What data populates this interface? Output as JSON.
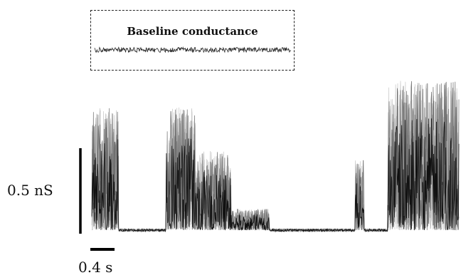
{
  "inset": {
    "title": "Baseline conductance"
  },
  "scale_bars": {
    "vertical_label": "0.5 nS",
    "horizontal_label": "0.4 s"
  },
  "chart_data": {
    "type": "line",
    "title": "",
    "xlabel": "",
    "ylabel": "",
    "units": {
      "x": "s",
      "y": "nS"
    },
    "xlim": [
      0,
      6.2
    ],
    "ylim": [
      0,
      0.85
    ],
    "bursts": [
      {
        "start_s": 0.0,
        "end_s": 0.45,
        "peak_nS": 0.7
      },
      {
        "start_s": 1.25,
        "end_s": 1.75,
        "peak_nS": 0.7
      },
      {
        "start_s": 1.75,
        "end_s": 2.35,
        "peak_nS": 0.45
      },
      {
        "start_s": 2.35,
        "end_s": 3.0,
        "peak_nS": 0.12
      },
      {
        "start_s": 4.45,
        "end_s": 4.6,
        "peak_nS": 0.4
      },
      {
        "start_s": 5.0,
        "end_s": 6.2,
        "peak_nS": 0.85
      }
    ],
    "baseline_nS": 0.02
  }
}
